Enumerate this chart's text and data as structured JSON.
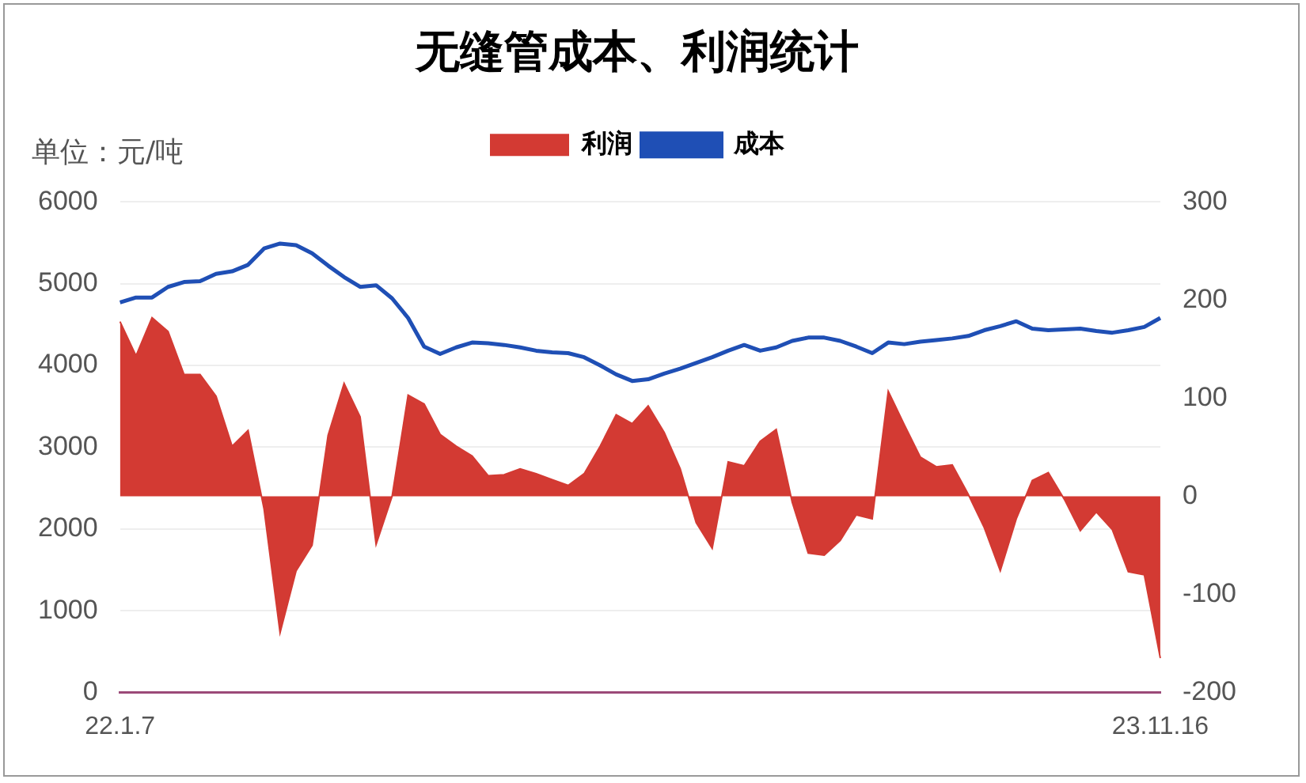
{
  "chart_data": {
    "type": "line",
    "title": "无缝管成本、利润统计",
    "ylabel": "单位：元/吨",
    "categories": [
      "22.1.7",
      null,
      null,
      null,
      null,
      null,
      null,
      null,
      null,
      null,
      null,
      null,
      null,
      null,
      null,
      null,
      null,
      null,
      null,
      null,
      null,
      null,
      null,
      null,
      null,
      null,
      null,
      null,
      null,
      null,
      null,
      null,
      null,
      null,
      null,
      null,
      null,
      null,
      null,
      null,
      null,
      null,
      null,
      null,
      null,
      null,
      null,
      null,
      null,
      null,
      null,
      null,
      null,
      null,
      null,
      null,
      null,
      null,
      null,
      null,
      null,
      null,
      null,
      null,
      null,
      "23.11.16"
    ],
    "series": [
      {
        "name": "利润",
        "type": "area",
        "axis": "y2",
        "color": "#d33a33",
        "values": [
          178,
          143,
          182,
          168,
          124,
          124,
          102,
          51,
          67,
          -13,
          -139,
          -76,
          -50,
          62,
          115,
          81,
          -49,
          0,
          103,
          94,
          63,
          51,
          41,
          21,
          22,
          28,
          23,
          17,
          11,
          23,
          51,
          83,
          74,
          92,
          65,
          28,
          -27,
          -53,
          35,
          31,
          56,
          68,
          -6,
          -58,
          -60,
          -45,
          -19,
          -23,
          107,
          73,
          40,
          30,
          32,
          2,
          -32,
          -76,
          -23,
          16,
          24,
          -3,
          -35,
          -16,
          -34,
          -77,
          -80,
          -165
        ]
      },
      {
        "name": "成本",
        "type": "line",
        "color": "#1f4fb5",
        "values": [
          4770,
          4830,
          4830,
          4960,
          5020,
          5030,
          5120,
          5150,
          5230,
          5430,
          5490,
          5470,
          5370,
          5220,
          5080,
          4960,
          4980,
          4820,
          4580,
          4230,
          4140,
          4220,
          4280,
          4270,
          4250,
          4220,
          4180,
          4160,
          4150,
          4100,
          4000,
          3890,
          3810,
          3830,
          3900,
          3960,
          4030,
          4100,
          4180,
          4250,
          4180,
          4220,
          4300,
          4340,
          4340,
          4300,
          4230,
          4150,
          4280,
          4260,
          4290,
          4310,
          4330,
          4360,
          4430,
          4480,
          4540,
          4450,
          4430,
          4440,
          4450,
          4420,
          4400,
          4430,
          4470,
          4580
        ]
      }
    ],
    "ylim": [
      0,
      6000
    ],
    "yticks": [
      0,
      1000,
      2000,
      3000,
      4000,
      5000,
      6000
    ],
    "y2lim": [
      -200,
      300
    ],
    "y2ticks": [
      -200,
      -100,
      0,
      100,
      200,
      300
    ],
    "grid": "y",
    "legend": "top",
    "marker": "none"
  }
}
